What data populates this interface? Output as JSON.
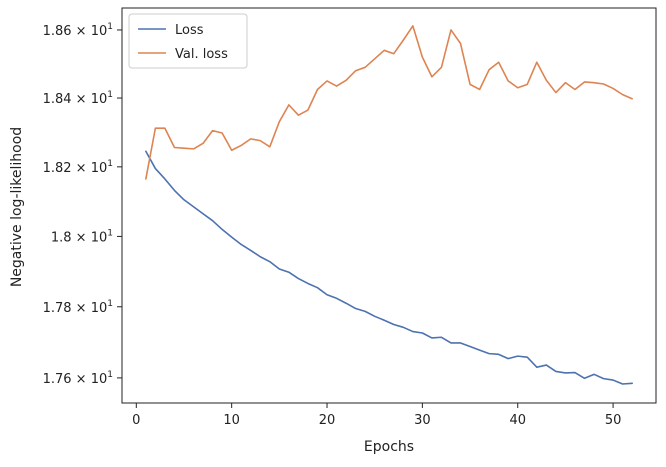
{
  "chart_data": {
    "type": "line",
    "xlabel": "Epochs",
    "ylabel": "Negative log-likelihood",
    "xlim": [
      -1.5,
      54.5
    ],
    "ylim": [
      17.53,
      18.665
    ],
    "y_scale": "log",
    "grid": false,
    "legend_position": "top-left",
    "x_ticks": [
      0,
      10,
      20,
      30,
      40,
      50
    ],
    "x_tick_labels": [
      "0",
      "10",
      "20",
      "30",
      "40",
      "50"
    ],
    "y_ticks": [
      17.6,
      17.8,
      18.0,
      18.2,
      18.4,
      18.6
    ],
    "y_tick_labels": [
      {
        "mantissa": "1.76",
        "base": "10",
        "exp": "1"
      },
      {
        "mantissa": "1.78",
        "base": "10",
        "exp": "1"
      },
      {
        "mantissa": "1.8",
        "base": "10",
        "exp": "1"
      },
      {
        "mantissa": "1.82",
        "base": "10",
        "exp": "1"
      },
      {
        "mantissa": "1.84",
        "base": "10",
        "exp": "1"
      },
      {
        "mantissa": "1.86",
        "base": "10",
        "exp": "1"
      }
    ],
    "x": [
      1,
      2,
      3,
      4,
      5,
      6,
      7,
      8,
      9,
      10,
      11,
      12,
      13,
      14,
      15,
      16,
      17,
      18,
      19,
      20,
      21,
      22,
      23,
      24,
      25,
      26,
      27,
      28,
      29,
      30,
      31,
      32,
      33,
      34,
      35,
      36,
      37,
      38,
      39,
      40,
      41,
      42,
      43,
      44,
      45,
      46,
      47,
      48,
      49,
      50,
      51,
      52
    ],
    "series": [
      {
        "name": "Loss",
        "color": "#4c72b0",
        "values": [
          18.245,
          18.195,
          18.165,
          18.132,
          18.105,
          18.085,
          18.065,
          18.045,
          18.02,
          17.998,
          17.977,
          17.96,
          17.942,
          17.928,
          17.907,
          17.898,
          17.88,
          17.866,
          17.854,
          17.834,
          17.824,
          17.81,
          17.795,
          17.787,
          17.773,
          17.762,
          17.75,
          17.742,
          17.73,
          17.726,
          17.712,
          17.714,
          17.698,
          17.698,
          17.688,
          17.678,
          17.668,
          17.666,
          17.654,
          17.661,
          17.658,
          17.63,
          17.636,
          17.618,
          17.614,
          17.615,
          17.599,
          17.61,
          17.598,
          17.594,
          17.583,
          17.585
        ]
      },
      {
        "name": "Val. loss",
        "color": "#dd8452",
        "values": [
          18.165,
          18.312,
          18.312,
          18.256,
          18.254,
          18.252,
          18.268,
          18.305,
          18.298,
          18.248,
          18.262,
          18.281,
          18.276,
          18.258,
          18.331,
          18.38,
          18.35,
          18.365,
          18.425,
          18.45,
          18.435,
          18.452,
          18.48,
          18.49,
          18.515,
          18.54,
          18.53,
          18.57,
          18.612,
          18.52,
          18.462,
          18.49,
          18.6,
          18.56,
          18.44,
          18.425,
          18.483,
          18.505,
          18.45,
          18.43,
          18.44,
          18.505,
          18.452,
          18.416,
          18.445,
          18.425,
          18.447,
          18.445,
          18.441,
          18.428,
          18.41,
          18.398
        ]
      }
    ]
  }
}
